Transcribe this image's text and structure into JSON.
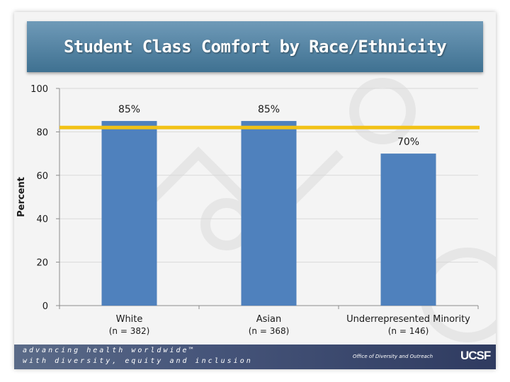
{
  "slide": {
    "title": "Student Class Comfort by Race/Ethnicity"
  },
  "chart_data": {
    "type": "bar",
    "ylabel": "Percent",
    "ylim": [
      0,
      100
    ],
    "yticks": [
      0,
      20,
      40,
      60,
      80,
      100
    ],
    "categories": [
      "White",
      "Asian",
      "Underrepresented Minority"
    ],
    "sample_sizes": [
      "(n = 382)",
      "(n = 368)",
      "(n = 146)"
    ],
    "values": [
      85,
      85,
      70
    ],
    "data_labels": [
      "85%",
      "85%",
      "70%"
    ],
    "reference_line": 82,
    "colors": {
      "bar": "#4f81bd",
      "reference": "#f2c216"
    }
  },
  "footer": {
    "tagline_1": "advancing health worldwide™",
    "tagline_2": "with diversity, equity and inclusion",
    "office": "Office of Diversity and Outreach",
    "logo": "UCSF"
  }
}
